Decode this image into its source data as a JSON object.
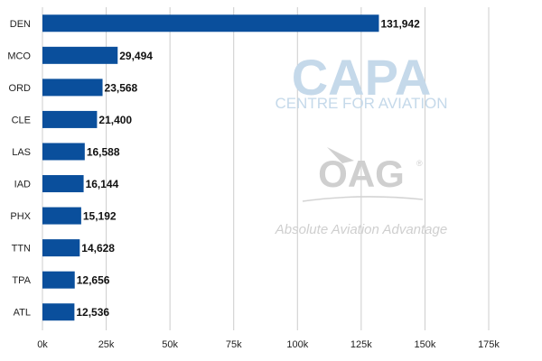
{
  "chart_data": {
    "type": "bar",
    "orientation": "horizontal",
    "categories": [
      "DEN",
      "MCO",
      "ORD",
      "CLE",
      "LAS",
      "IAD",
      "PHX",
      "TTN",
      "TPA",
      "ATL"
    ],
    "values": [
      131942,
      29494,
      23568,
      21400,
      16588,
      16144,
      15192,
      14628,
      12656,
      12536
    ],
    "value_labels": [
      "131,942",
      "29,494",
      "23,568",
      "21,400",
      "16,588",
      "16,144",
      "15,192",
      "14,628",
      "12,656",
      "12,536"
    ],
    "title": "",
    "xlabel": "",
    "ylabel": "",
    "xlim": [
      0,
      175000
    ],
    "x_ticks": [
      0,
      25000,
      50000,
      75000,
      100000,
      125000,
      150000,
      175000
    ],
    "x_tick_labels": [
      "0k",
      "25k",
      "50k",
      "75k",
      "100k",
      "125k",
      "150k",
      "175k"
    ],
    "grid": "vertical",
    "bar_color": "#0a4f9c",
    "grid_color": "#cccccc"
  },
  "watermarks": {
    "capa_title": "CAPA",
    "capa_subtitle": "CENTRE FOR AVIATION",
    "oag_title": "OAG",
    "oag_registered": "®",
    "oag_tagline": "Absolute Aviation Advantage"
  }
}
